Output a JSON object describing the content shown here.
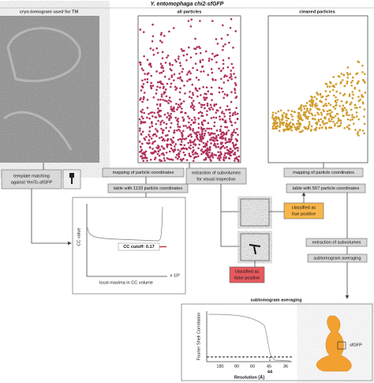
{
  "title": "Y. entomophaga chi2-sfGFP",
  "panels": [
    "cryo-tomogram used for TM",
    "all particles",
    "cleaned particles"
  ],
  "template": [
    "template matching",
    "against YenTc-sfGFP"
  ],
  "mapping_all": "mapping of particle coordinates",
  "table_all": "table with 1133 particle coordinates",
  "extraction_inspection": [
    "extraction of subvolumes",
    "for visual inspection"
  ],
  "mapping_clean": "mapping of particle coordinates",
  "table_clean": "table with 567 particle coordinates",
  "cc_plot": {
    "ylabel": "CC value",
    "xlabel": "local maxima in CC volume",
    "xscale": "x 10⁵",
    "cutoff": "CC cutoff: 0.17"
  },
  "true_positive": [
    "classified as",
    "true positive"
  ],
  "false_positive": [
    "classified as",
    "false positive"
  ],
  "extraction": "extraction of subvolumes",
  "averaging": "subtomogram averaging",
  "fsc": {
    "header": "subtomogram averaging",
    "ylabel": "Fourier Shell Correlation",
    "xlabel": "Resolution [Å]",
    "xticks": [
      "180",
      "90",
      "60",
      "45",
      "36"
    ],
    "marker": "44",
    "map_label": "sfGFP"
  }
}
